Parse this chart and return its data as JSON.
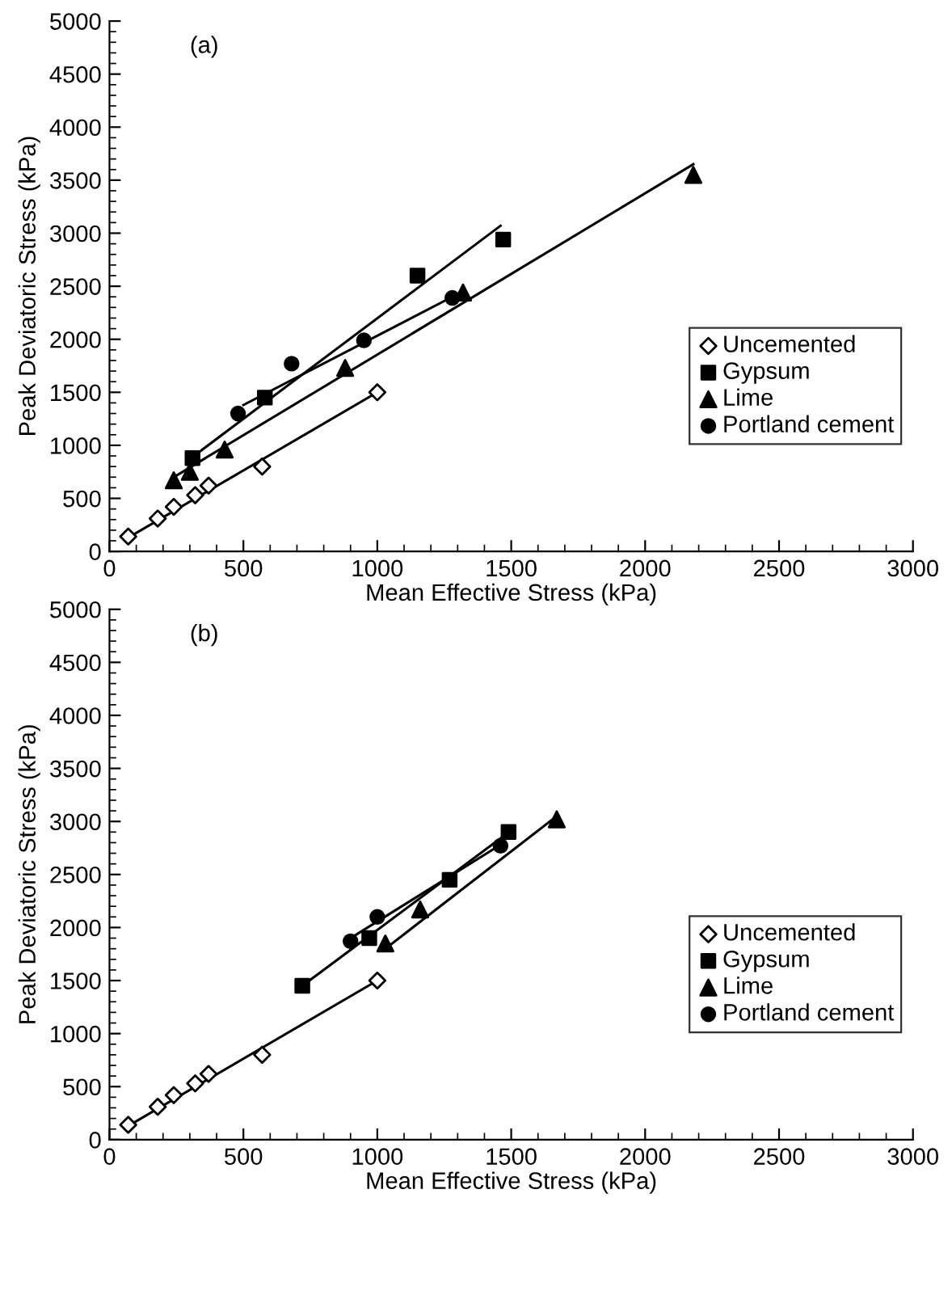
{
  "chart_data": [
    {
      "type": "scatter",
      "xlabel": "Mean Effective Stress (kPa)",
      "ylabel": "Peak Deviatoric Stress (kPa)",
      "annotations": [
        "(a)"
      ],
      "xlim": [
        0,
        3000
      ],
      "ylim": [
        0,
        5000
      ],
      "xticks": [
        0,
        500,
        1000,
        1500,
        2000,
        2500,
        3000
      ],
      "yticks": [
        0,
        500,
        1000,
        1500,
        2000,
        2500,
        3000,
        3500,
        4000,
        4500,
        5000
      ],
      "grid": false,
      "legend": "bottom right",
      "series": [
        {
          "name": "Uncemented",
          "color": "#000000",
          "marker": "diamond",
          "x": [
            70,
            180,
            240,
            320,
            370,
            570,
            1000
          ],
          "values": [
            140,
            310,
            420,
            530,
            620,
            800,
            1500
          ]
        },
        {
          "name": "Gypsum",
          "color": "#000000",
          "marker": "square",
          "x": [
            310,
            580,
            1150,
            1470
          ],
          "values": [
            880,
            1450,
            2600,
            2940
          ]
        },
        {
          "name": "Lime",
          "color": "#000000",
          "marker": "triangle",
          "x": [
            240,
            300,
            430,
            880,
            1320,
            2180
          ],
          "values": [
            670,
            750,
            960,
            1730,
            2440,
            3550
          ]
        },
        {
          "name": "Portland cement",
          "color": "#000000",
          "marker": "circle",
          "x": [
            480,
            680,
            950,
            1280
          ],
          "values": [
            1300,
            1770,
            1990,
            2390
          ]
        },
        {
          "type": "line",
          "color": "#000000",
          "marker": "none",
          "x": [
            70,
            1000
          ],
          "values": [
            130,
            1500
          ]
        },
        {
          "type": "line",
          "color": "#000000",
          "marker": "none",
          "x": [
            310,
            1460
          ],
          "values": [
            890,
            3070
          ]
        },
        {
          "type": "line",
          "color": "#000000",
          "marker": "none",
          "x": [
            240,
            2180
          ],
          "values": [
            700,
            3650
          ]
        },
        {
          "type": "line",
          "color": "#000000",
          "marker": "none",
          "x": [
            500,
            1280
          ],
          "values": [
            1380,
            2400
          ]
        }
      ]
    },
    {
      "type": "scatter",
      "xlabel": "Mean Effective Stress (kPa)",
      "ylabel": "Peak Deviatoric Stress (kPa)",
      "annotations": [
        "(b)"
      ],
      "xlim": [
        0,
        3000
      ],
      "ylim": [
        0,
        5000
      ],
      "xticks": [
        0,
        500,
        1000,
        1500,
        2000,
        2500,
        3000
      ],
      "yticks": [
        0,
        500,
        1000,
        1500,
        2000,
        2500,
        3000,
        3500,
        4000,
        4500,
        5000
      ],
      "grid": false,
      "legend": "bottom right",
      "series": [
        {
          "name": "Uncemented",
          "color": "#000000",
          "marker": "diamond",
          "x": [
            70,
            180,
            240,
            320,
            370,
            570,
            1000
          ],
          "values": [
            140,
            310,
            420,
            530,
            620,
            800,
            1500
          ]
        },
        {
          "name": "Gypsum",
          "color": "#000000",
          "marker": "square",
          "x": [
            720,
            970,
            1270,
            1490
          ],
          "values": [
            1450,
            1900,
            2450,
            2900
          ]
        },
        {
          "name": "Lime",
          "color": "#000000",
          "marker": "triangle",
          "x": [
            1030,
            1160,
            1670
          ],
          "values": [
            1850,
            2170,
            3020
          ]
        },
        {
          "name": "Portland cement",
          "color": "#000000",
          "marker": "circle",
          "x": [
            900,
            1000,
            1460
          ],
          "values": [
            1870,
            2100,
            2770
          ]
        },
        {
          "type": "line",
          "color": "#000000",
          "marker": "none",
          "x": [
            70,
            1000
          ],
          "values": [
            130,
            1500
          ]
        },
        {
          "type": "line",
          "color": "#000000",
          "marker": "none",
          "x": [
            720,
            1470
          ],
          "values": [
            1450,
            2860
          ]
        },
        {
          "type": "line",
          "color": "#000000",
          "marker": "none",
          "x": [
            1030,
            1670
          ],
          "values": [
            1800,
            3050
          ]
        },
        {
          "type": "line",
          "color": "#000000",
          "marker": "none",
          "x": [
            900,
            1460
          ],
          "values": [
            1900,
            2780
          ]
        }
      ]
    }
  ]
}
